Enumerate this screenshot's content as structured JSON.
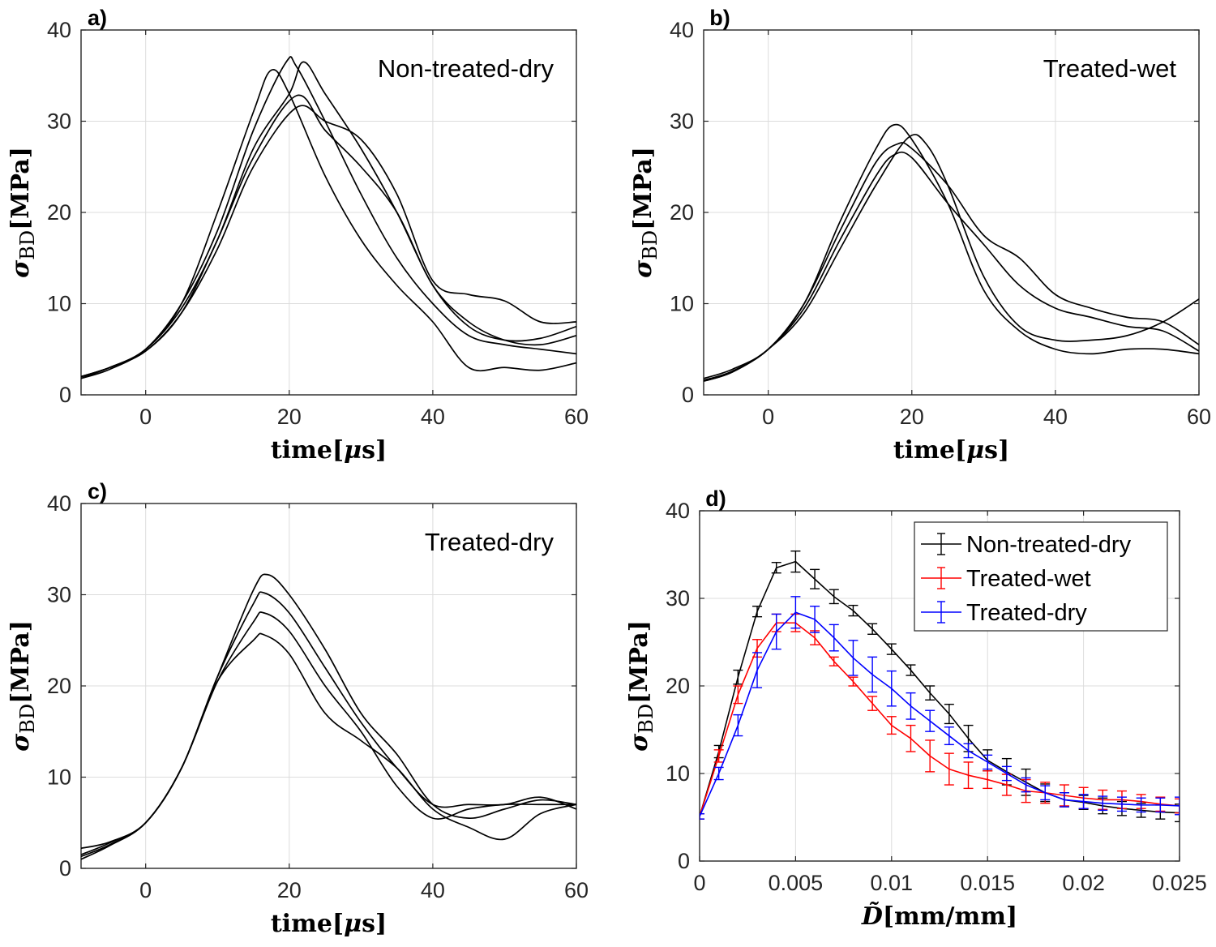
{
  "chart_data": [
    {
      "id": "a",
      "type": "line",
      "panel_label": "a)",
      "annotation": "Non-treated-dry",
      "xlabel": "time[μs]",
      "ylabel": "σBD[MPa]",
      "xlim": [
        -9,
        60
      ],
      "ylim": [
        0,
        40
      ],
      "xticks": [
        0,
        20,
        40,
        60
      ],
      "yticks": [
        0,
        10,
        20,
        30,
        40
      ],
      "grid": true,
      "series": [
        {
          "color": "#000000",
          "x": [
            -9,
            -5,
            0,
            5,
            10,
            15,
            17.5,
            20,
            25,
            30,
            35,
            40,
            45,
            50,
            55,
            60
          ],
          "y": [
            2,
            3,
            5,
            10,
            20,
            31,
            35.6,
            33,
            24,
            17,
            12,
            8,
            3,
            3,
            2.7,
            3.5
          ]
        },
        {
          "color": "#000000",
          "x": [
            -9,
            -5,
            0,
            5,
            10,
            15,
            19.5,
            21,
            25,
            30,
            35,
            40,
            45,
            50,
            55,
            60
          ],
          "y": [
            1.8,
            2.8,
            5,
            10,
            18,
            29,
            36.4,
            36,
            30,
            22,
            15,
            10,
            6.5,
            5.5,
            5,
            4.5
          ]
        },
        {
          "color": "#000000",
          "x": [
            -9,
            -5,
            0,
            5,
            10,
            15,
            20,
            22,
            25,
            30,
            35,
            40,
            45,
            50,
            55,
            60
          ],
          "y": [
            2,
            3,
            5,
            9.5,
            17,
            27,
            33,
            36.5,
            33,
            27,
            20,
            12,
            7.5,
            6,
            6.2,
            7.5
          ]
        },
        {
          "color": "#000000",
          "x": [
            -9,
            -5,
            0,
            5,
            10,
            15,
            21,
            25,
            30,
            35,
            40,
            45,
            50,
            55,
            60
          ],
          "y": [
            1.8,
            3,
            4.8,
            9,
            17,
            26,
            32.8,
            29,
            25,
            20,
            12,
            8,
            6,
            5.5,
            6.5
          ]
        },
        {
          "color": "#000000",
          "x": [
            -9,
            -5,
            0,
            5,
            10,
            15,
            21,
            25,
            30,
            35,
            40,
            45,
            50,
            55,
            60
          ],
          "y": [
            2,
            3,
            4.8,
            9,
            16,
            25,
            31.5,
            30,
            28,
            22,
            12.5,
            11,
            10.3,
            8,
            8
          ]
        }
      ]
    },
    {
      "id": "b",
      "type": "line",
      "panel_label": "b)",
      "annotation": "Treated-wet",
      "xlabel": "time[μs]",
      "ylabel": "σBD[MPa]",
      "xlim": [
        -9,
        60
      ],
      "ylim": [
        0,
        40
      ],
      "xticks": [
        0,
        20,
        40,
        60
      ],
      "yticks": [
        0,
        10,
        20,
        30,
        40
      ],
      "grid": true,
      "series": [
        {
          "color": "#000000",
          "x": [
            -9,
            -5,
            0,
            5,
            10,
            15,
            17.5,
            20,
            25,
            30,
            35,
            40,
            45,
            50,
            55,
            60
          ],
          "y": [
            1.6,
            2.6,
            5,
            10,
            19,
            27,
            29.6,
            28,
            21,
            11.5,
            7,
            5,
            4.5,
            5,
            5,
            4.5
          ]
        },
        {
          "color": "#000000",
          "x": [
            -9,
            -5,
            0,
            5,
            10,
            15,
            18,
            20,
            25,
            30,
            35,
            40,
            45,
            50,
            55,
            60
          ],
          "y": [
            1.8,
            2.8,
            5,
            10,
            18,
            25.5,
            27.5,
            27,
            23,
            17.5,
            15,
            11,
            9.5,
            8.5,
            8,
            5.5
          ]
        },
        {
          "color": "#000000",
          "x": [
            -9,
            -5,
            0,
            5,
            10,
            15,
            17.5,
            20,
            25,
            30,
            35,
            40,
            45,
            50,
            55,
            60
          ],
          "y": [
            1.5,
            2.5,
            5,
            9.5,
            17,
            24,
            26.3,
            26,
            21,
            16.5,
            12,
            9.5,
            8.5,
            7.5,
            7,
            4.8
          ]
        },
        {
          "color": "#000000",
          "x": [
            -9,
            -5,
            0,
            5,
            10,
            15,
            19.5,
            22,
            25,
            30,
            35,
            40,
            45,
            50,
            55,
            60
          ],
          "y": [
            1.5,
            2.5,
            5,
            9,
            16,
            23,
            28.2,
            27.5,
            23,
            13,
            7.5,
            6,
            6,
            6.5,
            8,
            10.5
          ]
        }
      ]
    },
    {
      "id": "c",
      "type": "line",
      "panel_label": "c)",
      "annotation": "Treated-dry",
      "xlabel": "time[μs]",
      "ylabel": "σBD[MPa]",
      "xlim": [
        -9,
        60
      ],
      "ylim": [
        0,
        40
      ],
      "xticks": [
        0,
        20,
        40,
        60
      ],
      "yticks": [
        0,
        10,
        20,
        30,
        40
      ],
      "grid": true,
      "series": [
        {
          "color": "#000000",
          "x": [
            -9,
            -5,
            0,
            5,
            10,
            15,
            17,
            20,
            25,
            30,
            35,
            40,
            45,
            50,
            55,
            60
          ],
          "y": [
            1.5,
            2.8,
            5,
            11,
            21,
            30.5,
            32.2,
            30,
            24,
            17,
            12.5,
            7,
            5.5,
            6.5,
            7.5,
            7
          ]
        },
        {
          "color": "#000000",
          "x": [
            -9,
            -5,
            0,
            5,
            10,
            15,
            16.5,
            20,
            25,
            30,
            35,
            40,
            45,
            50,
            55,
            60
          ],
          "y": [
            1,
            2.5,
            5,
            11,
            21,
            29,
            30.2,
            28,
            22,
            16,
            11,
            7,
            7,
            7,
            7.8,
            6.5
          ]
        },
        {
          "color": "#000000",
          "x": [
            -9,
            -5,
            0,
            5,
            10,
            15,
            16.5,
            20,
            25,
            30,
            35,
            40,
            45,
            50,
            55,
            60
          ],
          "y": [
            1.3,
            2.6,
            5,
            11,
            20.5,
            27,
            28,
            26,
            20,
            15,
            9,
            5.5,
            6.5,
            7,
            7,
            7
          ]
        },
        {
          "color": "#000000",
          "x": [
            -9,
            -5,
            0,
            5,
            10,
            15,
            16.5,
            20,
            25,
            30,
            35,
            40,
            45,
            50,
            55,
            60
          ],
          "y": [
            2.2,
            2.9,
            5,
            11,
            20.5,
            25,
            25.6,
            23.5,
            17,
            14,
            11,
            6.5,
            4.5,
            3.2,
            6,
            7
          ]
        }
      ]
    },
    {
      "id": "d",
      "type": "line",
      "panel_label": "d)",
      "xlabel": "D̃[mm/mm]",
      "ylabel": "σBD[MPa]",
      "xlim": [
        0,
        0.025
      ],
      "ylim": [
        0,
        40
      ],
      "xticks": [
        0,
        0.005,
        0.01,
        0.015,
        0.02,
        0.025
      ],
      "xtick_labels": [
        "0",
        "0.005",
        "0.01",
        "0.015",
        "0.02",
        "0.025"
      ],
      "yticks": [
        0,
        10,
        20,
        30,
        40
      ],
      "grid": true,
      "legend_position": "top-right",
      "x": [
        0,
        0.001,
        0.002,
        0.003,
        0.004,
        0.005,
        0.006,
        0.007,
        0.008,
        0.009,
        0.01,
        0.011,
        0.012,
        0.013,
        0.014,
        0.015,
        0.016,
        0.017,
        0.018,
        0.019,
        0.02,
        0.021,
        0.022,
        0.023,
        0.024,
        0.025
      ],
      "series": [
        {
          "name": "Non-treated-dry",
          "color": "#000000",
          "y": [
            5.1,
            12.5,
            21,
            28.5,
            33.5,
            34.2,
            32.2,
            30.2,
            28.6,
            26.5,
            24.2,
            21.8,
            19.2,
            16.8,
            14,
            11.5,
            10.2,
            9,
            7.8,
            7,
            6.7,
            6.3,
            6,
            5.8,
            5.6,
            5.5
          ],
          "err": [
            0.3,
            0.7,
            0.8,
            0.6,
            0.6,
            1.2,
            1.1,
            0.8,
            0.6,
            0.6,
            0.6,
            0.6,
            0.8,
            1.1,
            1.5,
            1.2,
            1.5,
            1.5,
            1.0,
            0.8,
            0.8,
            0.9,
            0.8,
            0.8,
            0.8,
            1.0
          ]
        },
        {
          "name": "Treated-wet",
          "color": "#ff0000",
          "y": [
            5.1,
            12,
            19,
            24.3,
            27.2,
            27.2,
            25.5,
            22.8,
            20.5,
            18,
            15.5,
            14,
            12,
            10.5,
            9.8,
            9.3,
            8.7,
            8,
            7.8,
            7.5,
            7.2,
            7,
            7,
            6.8,
            6.5,
            6.3
          ],
          "err": [
            0.3,
            0.7,
            1.0,
            1.0,
            1.0,
            1.0,
            0.8,
            0.5,
            0.5,
            0.8,
            1.0,
            1.5,
            1.8,
            1.8,
            1.5,
            1.0,
            1.2,
            1.3,
            1.2,
            1.2,
            1.2,
            1.1,
            1.0,
            0.8,
            0.8,
            0.8
          ]
        },
        {
          "name": "Treated-dry",
          "color": "#0000ff",
          "y": [
            5.1,
            10,
            15.5,
            21.8,
            26.2,
            28.4,
            27.6,
            25.5,
            23.2,
            21.3,
            19.7,
            17.7,
            16,
            14.3,
            12.6,
            11.3,
            10,
            8.7,
            7.8,
            7,
            6.8,
            6.6,
            6.5,
            6.4,
            6.4,
            6.3
          ],
          "err": [
            0.3,
            0.7,
            1.2,
            2.0,
            2.0,
            1.8,
            1.5,
            1.5,
            2.0,
            2.0,
            2.0,
            1.5,
            1.2,
            1.0,
            0.8,
            0.8,
            0.8,
            0.8,
            0.8,
            0.8,
            0.8,
            0.8,
            0.8,
            0.8,
            0.8,
            1.0
          ]
        }
      ]
    }
  ]
}
